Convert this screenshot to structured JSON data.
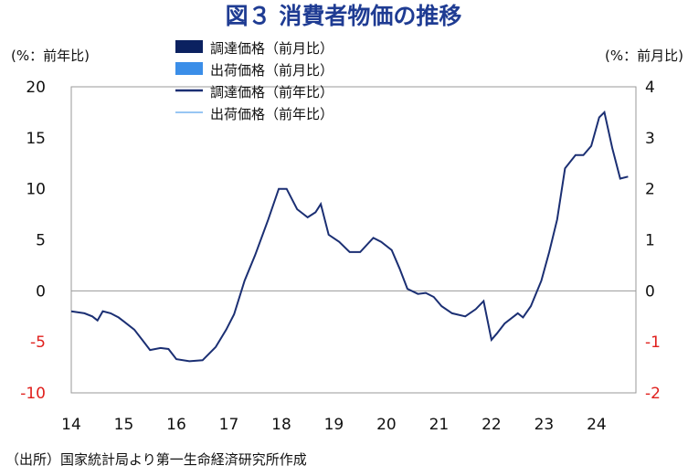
{
  "chart_data": {
    "type": "bar",
    "title": "図３ 消費者物価の推移",
    "source": "（出所）国家統計局より第一生命経済研究所作成",
    "left_axis": {
      "unit": "(%：前年比)",
      "range": [
        -10,
        20
      ],
      "ticks": [
        "20",
        "15",
        "10",
        "5",
        "0",
        "-5",
        "-10"
      ],
      "tick_values": [
        20,
        15,
        10,
        5,
        0,
        -5,
        -10
      ],
      "negative_color": "#e0201d"
    },
    "right_axis": {
      "unit": "(%：前月比)",
      "range": [
        -2,
        4
      ],
      "ticks": [
        "4",
        "3",
        "2",
        "1",
        "0",
        "-1",
        "-2"
      ],
      "tick_values": [
        4,
        3,
        2,
        1,
        0,
        -1,
        -2
      ],
      "negative_color": "#e0201d"
    },
    "x_axis": {
      "tick_labels": [
        "14",
        "15",
        "16",
        "17",
        "18",
        "19",
        "20",
        "21",
        "22",
        "23",
        "24"
      ],
      "tick_values": [
        2014,
        2015,
        2016,
        2017,
        2018,
        2019,
        2020,
        2021,
        2022,
        2023,
        2024
      ],
      "range": [
        2014,
        2024.75
      ]
    },
    "legend": {
      "placement": "top-center",
      "entries": [
        {
          "label": "調達価格（前月比）",
          "kind": "bar",
          "color": "#0b2160"
        },
        {
          "label": "出荷価格（前月比）",
          "kind": "bar",
          "color": "#3b8ee8"
        },
        {
          "label": "調達価格（前年比）",
          "kind": "line",
          "color": "#1b2f73"
        },
        {
          "label": "出荷価格（前年比）",
          "kind": "line",
          "color": "#5aa4ec"
        }
      ]
    },
    "series": [
      {
        "name": "調達価格（前年比）",
        "kind": "line",
        "axis": "left",
        "color": "#1b2f73",
        "points": [
          [
            2014.0,
            -2.0
          ],
          [
            2014.25,
            -2.2
          ],
          [
            2014.4,
            -2.5
          ],
          [
            2014.5,
            -2.9
          ],
          [
            2014.6,
            -2.0
          ],
          [
            2014.75,
            -2.2
          ],
          [
            2014.9,
            -2.6
          ],
          [
            2015.0,
            -3.0
          ],
          [
            2015.2,
            -3.8
          ],
          [
            2015.35,
            -4.8
          ],
          [
            2015.5,
            -5.8
          ],
          [
            2015.7,
            -5.6
          ],
          [
            2015.85,
            -5.7
          ],
          [
            2016.0,
            -6.7
          ],
          [
            2016.25,
            -6.9
          ],
          [
            2016.5,
            -6.8
          ],
          [
            2016.75,
            -5.5
          ],
          [
            2016.95,
            -3.8
          ],
          [
            2017.1,
            -2.3
          ],
          [
            2017.3,
            1.0
          ],
          [
            2017.5,
            3.5
          ],
          [
            2017.75,
            7.0
          ],
          [
            2017.95,
            10.0
          ],
          [
            2018.1,
            10.0
          ],
          [
            2018.3,
            8.0
          ],
          [
            2018.5,
            7.2
          ],
          [
            2018.65,
            7.7
          ],
          [
            2018.75,
            8.5
          ],
          [
            2018.9,
            5.5
          ],
          [
            2019.1,
            4.8
          ],
          [
            2019.3,
            3.8
          ],
          [
            2019.5,
            3.8
          ],
          [
            2019.75,
            5.2
          ],
          [
            2019.9,
            4.8
          ],
          [
            2020.1,
            4.0
          ],
          [
            2020.25,
            2.2
          ],
          [
            2020.4,
            0.2
          ],
          [
            2020.6,
            -0.3
          ],
          [
            2020.75,
            -0.2
          ],
          [
            2020.9,
            -0.6
          ],
          [
            2021.05,
            -1.5
          ],
          [
            2021.25,
            -2.2
          ],
          [
            2021.5,
            -2.5
          ],
          [
            2021.7,
            -1.8
          ],
          [
            2021.85,
            -1.0
          ],
          [
            2022.0,
            -4.8
          ],
          [
            2022.1,
            -4.2
          ],
          [
            2022.25,
            -3.2
          ],
          [
            2022.5,
            -2.2
          ],
          [
            2022.6,
            -2.6
          ],
          [
            2022.75,
            -1.5
          ],
          [
            2022.95,
            1.0
          ],
          [
            2023.1,
            3.8
          ],
          [
            2023.25,
            7.0
          ],
          [
            2023.4,
            12.0
          ],
          [
            2023.6,
            13.3
          ],
          [
            2023.75,
            13.3
          ],
          [
            2023.9,
            14.2
          ],
          [
            2024.05,
            17.0
          ],
          [
            2024.15,
            17.5
          ],
          [
            2024.3,
            14.0
          ],
          [
            2024.45,
            11.0
          ],
          [
            2024.6,
            11.2
          ]
        ],
        "notes": "placeholder"
      }
    ]
  }
}
